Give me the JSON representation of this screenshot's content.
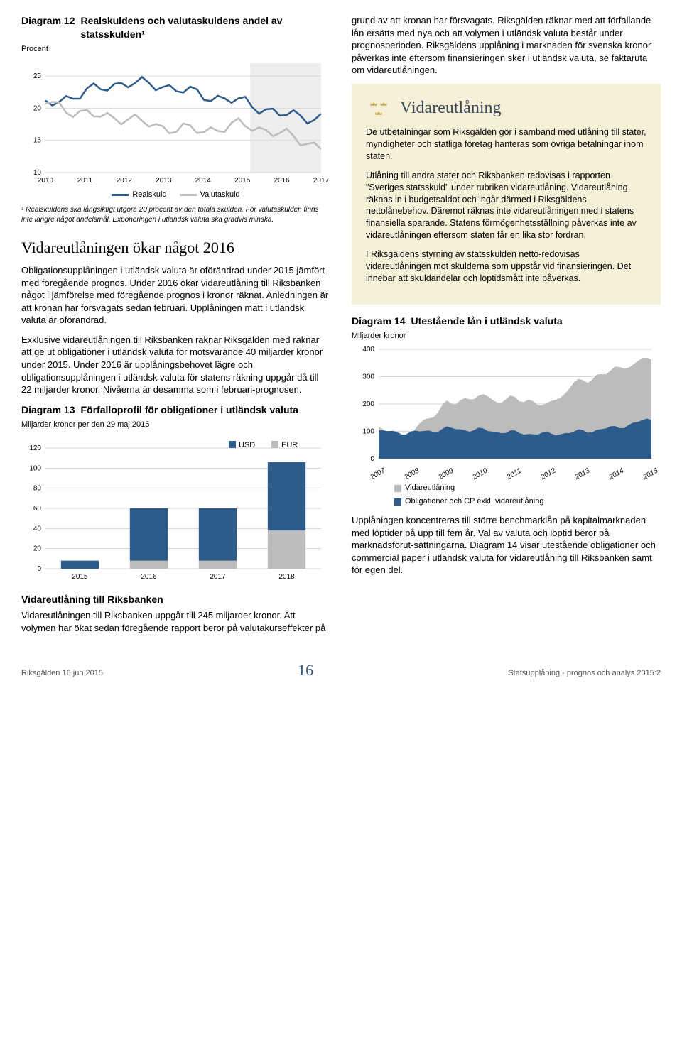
{
  "left": {
    "chart12": {
      "number": "Diagram 12",
      "title": "Realskuldens och valutaskuldens andel av statsskulden¹",
      "y_unit": "Procent",
      "type": "line",
      "x_labels": [
        "2010",
        "2011",
        "2012",
        "2013",
        "2014",
        "2015",
        "2016",
        "2017"
      ],
      "x_positions": [
        0,
        1,
        2,
        3,
        4,
        5,
        6,
        7
      ],
      "y_ticks": [
        10,
        15,
        20,
        25
      ],
      "ylim": [
        10,
        27
      ],
      "shade_start": 5.2,
      "series": [
        {
          "name": "Realskuld",
          "color": "#2e5c8a",
          "width": 2.5,
          "values": [
            20.5,
            22.5,
            24,
            23.5,
            22,
            21,
            19,
            18.5
          ]
        },
        {
          "name": "Valutaskuld",
          "color": "#bcbcbc",
          "width": 2.5,
          "values": [
            21,
            19,
            18.5,
            17,
            16.5,
            17.5,
            16,
            14
          ]
        }
      ],
      "legend": [
        {
          "label": "Realskuld",
          "color": "#2e5c8a"
        },
        {
          "label": "Valutaskuld",
          "color": "#bcbcbc"
        }
      ],
      "footnote": "¹ Realskuldens ska långsiktigt utgöra 20 procent av den totala skulden. För valutaskulden finns inte längre något andelsmål. Exponeringen i utländsk valuta ska gradvis minska."
    },
    "section_heading": "Vidareutlåningen ökar något 2016",
    "p1": "Obligationsupplåningen i utländsk valuta är oförändrad under 2015 jämfört med föregående prognos. Under 2016 ökar vidareutlåning till Riksbanken något i jämförelse med föregående prognos i kronor räknat. Anledningen är att kronan har försvagats sedan februari. Upplåningen mätt i utländsk valuta är oförändrad.",
    "p2": "Exklusive vidareutlåningen till Riksbanken räknar Riksgälden med räknar att ge ut obligationer i utländsk valuta för motsvarande 40 miljarder kronor under 2015. Under 2016 är upplåningsbehovet lägre och obligationsupplåningen i utländsk valuta för statens räkning uppgår då till 22 miljarder kronor. Nivåerna är desamma som i februari-prognosen.",
    "chart13": {
      "number": "Diagram 13",
      "title": "Förfalloprofil för obligationer i utländsk valuta",
      "y_unit": "Miljarder kronor per den 29 maj 2015",
      "type": "stacked-bar",
      "categories": [
        "2015",
        "2016",
        "2017",
        "2018"
      ],
      "y_ticks": [
        0,
        20,
        40,
        60,
        80,
        100,
        120
      ],
      "ylim": [
        0,
        120
      ],
      "bar_width": 0.55,
      "series": [
        {
          "name": "USD",
          "color": "#2e5c8a",
          "values": [
            8,
            52,
            52,
            68
          ]
        },
        {
          "name": "EUR",
          "color": "#bcbcbc",
          "values": [
            0,
            8,
            8,
            38
          ]
        }
      ],
      "legend": [
        {
          "label": "USD",
          "color": "#2e5c8a"
        },
        {
          "label": "EUR",
          "color": "#bcbcbc"
        }
      ]
    },
    "sub_heading": "Vidareutlåning till Riksbanken",
    "p3": "Vidareutlåningen till Riksbanken uppgår till 245 miljarder kronor. Att volymen har ökat sedan föregående rapport beror på valutakurseffekter på"
  },
  "right": {
    "p_top": "grund av att kronan har försvagats. Riksgälden räknar med att förfallande lån ersätts med nya och att volymen i utländsk valuta består under prognosperioden. Riksgäldens upplåning i marknaden för svenska kronor påverkas inte eftersom finansieringen sker i utländsk valuta, se faktaruta om vidareutlåningen.",
    "info": {
      "title": "Vidareutlåning",
      "crown_color": "#c8a951",
      "p1": "De utbetalningar som Riksgälden gör i samband med utlåning till stater, myndigheter och statliga företag hanteras som övriga betalningar inom staten.",
      "p2": "Utlåning till andra stater och Riksbanken redovisas i rapporten \"Sveriges statsskuld\" under rubriken vidareutlåning. Vidareutlåning räknas in i budgetsaldot och ingår därmed i Riksgäldens nettolånebehov. Däremot räknas inte vidareutlåningen med i statens finansiella sparande. Statens förmögenhetsställning påverkas inte av vidareutlåningen eftersom staten får en lika stor fordran.",
      "p3": "I Riksgäldens styrning av statsskulden netto-redovisas vidareutlåningen mot skulderna som uppstår vid finansieringen. Det innebär att skuldandelar och löptidsmått inte påverkas."
    },
    "chart14": {
      "number": "Diagram 14",
      "title": "Utestående lån i utländsk valuta",
      "y_unit": "Miljarder kronor",
      "type": "stacked-area",
      "x_labels": [
        "2007",
        "2008",
        "2009",
        "2010",
        "2011",
        "2012",
        "2013",
        "2014",
        "2015"
      ],
      "y_ticks": [
        0,
        100,
        200,
        300,
        400
      ],
      "ylim": [
        0,
        400
      ],
      "series": [
        {
          "name": "Obligationer och CP exkl. vidareutlåning",
          "color": "#2e5c8a",
          "values": [
            100,
            95,
            110,
            105,
            95,
            90,
            100,
            115,
            145
          ]
        },
        {
          "name": "Vidareutlåning",
          "color": "#bcbcbc",
          "values": [
            0,
            0,
            95,
            120,
            120,
            110,
            190,
            210,
            230
          ]
        }
      ],
      "legend": [
        {
          "label": "Vidareutlåning",
          "color": "#bcbcbc"
        },
        {
          "label": "Obligationer och CP exkl. vidareutlåning",
          "color": "#2e5c8a"
        }
      ]
    },
    "p_bottom": "Upplåningen koncentreras till större benchmarklån på kapitalmarknaden med löptider på upp till fem år. Val av valuta och löptid beror på marknadsförut-sättningarna. Diagram 14 visar utestående obligationer och commercial paper i utländsk valuta för vidareutlåning till Riksbanken samt för egen del."
  },
  "footer": {
    "left": "Riksgälden 16 jun 2015",
    "page": "16",
    "right": "Statsupplåning - prognos och analys 2015:2"
  }
}
